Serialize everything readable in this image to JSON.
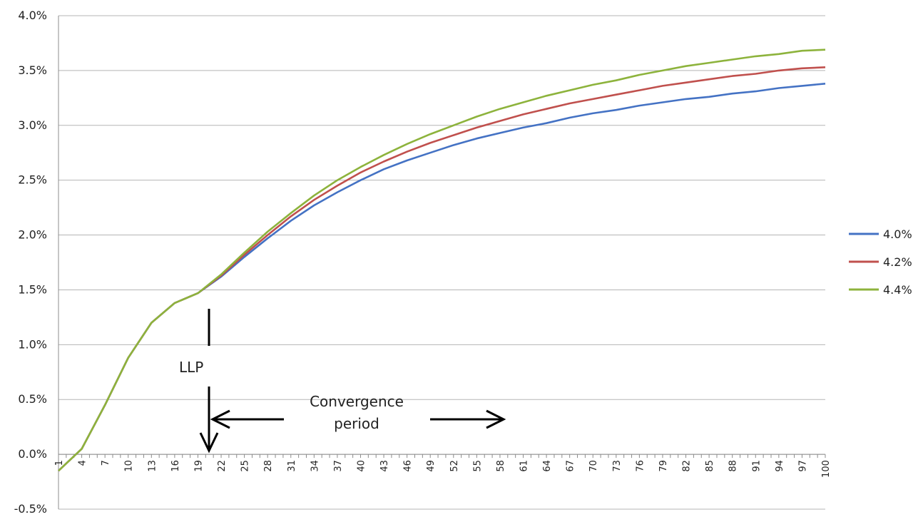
{
  "chart_data": {
    "type": "line",
    "x": [
      1,
      4,
      7,
      10,
      13,
      16,
      19,
      22,
      25,
      28,
      31,
      34,
      37,
      40,
      43,
      46,
      49,
      52,
      55,
      58,
      61,
      64,
      67,
      70,
      73,
      76,
      79,
      82,
      85,
      88,
      91,
      94,
      97,
      100
    ],
    "x_tick_labels": [
      "1",
      "4",
      "7",
      "10",
      "13",
      "16",
      "19",
      "22",
      "25",
      "28",
      "31",
      "34",
      "37",
      "40",
      "43",
      "46",
      "49",
      "52",
      "55",
      "58",
      "61",
      "64",
      "67",
      "70",
      "73",
      "76",
      "79",
      "82",
      "85",
      "88",
      "91",
      "94",
      "97",
      "100"
    ],
    "ylim": [
      -0.5,
      4.0
    ],
    "y_ticks": [
      -0.5,
      0.0,
      0.5,
      1.0,
      1.5,
      2.0,
      2.5,
      3.0,
      3.5,
      4.0
    ],
    "y_tick_labels": [
      "-0.5%",
      "0.0%",
      "0.5%",
      "1.0%",
      "1.5%",
      "2.0%",
      "2.5%",
      "3.0%",
      "3.5%",
      "4.0%"
    ],
    "grid": "horizontal",
    "legend_position": "right",
    "series": [
      {
        "name": "4.0%",
        "color": "#4472C4",
        "values": [
          -0.15,
          0.05,
          0.45,
          0.88,
          1.2,
          1.38,
          1.47,
          1.62,
          1.8,
          1.97,
          2.13,
          2.27,
          2.39,
          2.5,
          2.6,
          2.68,
          2.75,
          2.82,
          2.88,
          2.93,
          2.98,
          3.02,
          3.07,
          3.11,
          3.14,
          3.18,
          3.21,
          3.24,
          3.26,
          3.29,
          3.31,
          3.34,
          3.36,
          3.38
        ]
      },
      {
        "name": "4.2%",
        "color": "#C0504D",
        "values": [
          -0.15,
          0.05,
          0.45,
          0.88,
          1.2,
          1.38,
          1.47,
          1.63,
          1.82,
          2.0,
          2.17,
          2.32,
          2.45,
          2.57,
          2.67,
          2.76,
          2.84,
          2.91,
          2.98,
          3.04,
          3.1,
          3.15,
          3.2,
          3.24,
          3.28,
          3.32,
          3.36,
          3.39,
          3.42,
          3.45,
          3.47,
          3.5,
          3.52,
          3.53
        ]
      },
      {
        "name": "4.4%",
        "color": "#8DB33C",
        "values": [
          -0.15,
          0.05,
          0.45,
          0.88,
          1.2,
          1.38,
          1.47,
          1.64,
          1.84,
          2.03,
          2.2,
          2.36,
          2.5,
          2.62,
          2.73,
          2.83,
          2.92,
          3.0,
          3.08,
          3.15,
          3.21,
          3.27,
          3.32,
          3.37,
          3.41,
          3.46,
          3.5,
          3.54,
          3.57,
          3.6,
          3.63,
          3.65,
          3.68,
          3.69
        ]
      }
    ],
    "annotations": {
      "llp_label": "LLP",
      "llp_x": 20,
      "convergence_label_line1": "Convergence",
      "convergence_label_line2": "period",
      "convergence_start_x": 20,
      "convergence_end_x": 60
    }
  }
}
